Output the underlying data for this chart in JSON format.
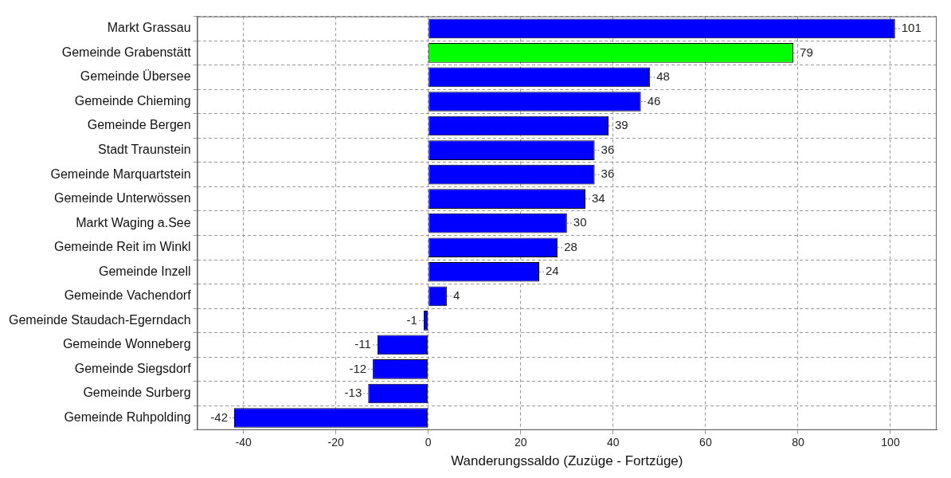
{
  "chart_data": {
    "type": "bar",
    "orientation": "horizontal",
    "xlabel": "Wanderungssaldo (Zuzüge - Fortzüge)",
    "categories": [
      "Markt Grassau",
      "Gemeinde Grabenstätt",
      "Gemeinde Übersee",
      "Gemeinde Chieming",
      "Gemeinde Bergen",
      "Stadt Traunstein",
      "Gemeinde Marquartstein",
      "Gemeinde Unterwössen",
      "Markt Waging a.See",
      "Gemeinde Reit im Winkl",
      "Gemeinde Inzell",
      "Gemeinde Vachendorf",
      "Gemeinde Staudach-Egerndach",
      "Gemeinde Wonneberg",
      "Gemeinde Siegsdorf",
      "Gemeinde Surberg",
      "Gemeinde Ruhpolding"
    ],
    "values": [
      101,
      79,
      48,
      46,
      39,
      36,
      36,
      34,
      30,
      28,
      24,
      4,
      -1,
      -11,
      -12,
      -13,
      -42
    ],
    "colors": [
      "#0000ff",
      "#00ff00",
      "#0000ff",
      "#0000ff",
      "#0000ff",
      "#0000ff",
      "#0000ff",
      "#0000ff",
      "#0000ff",
      "#0000ff",
      "#0000ff",
      "#0000ff",
      "#0000ff",
      "#0000ff",
      "#0000ff",
      "#0000ff",
      "#0000ff"
    ],
    "xlim": [
      -50,
      110
    ],
    "xticks": [
      -40,
      -20,
      0,
      20,
      40,
      60,
      80,
      100
    ],
    "grid": true,
    "line_style": "dashed",
    "data_labels": true,
    "legend": false
  }
}
